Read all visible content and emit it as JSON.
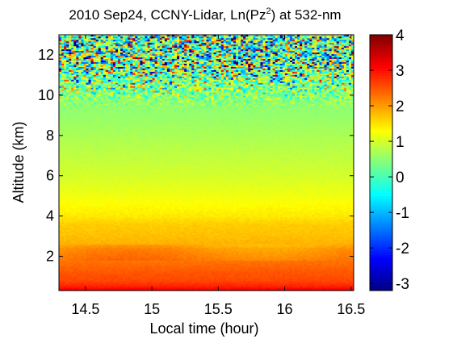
{
  "chart_data": {
    "type": "heatmap",
    "title_parts": {
      "main": "2010 Sep24, CCNY-Lidar, Ln(Pz",
      "sup": "2",
      "tail": ") at 532-nm"
    },
    "xlabel": "Local time (hour)",
    "ylabel": "Altitude (km)",
    "xlim": [
      14.3,
      16.52
    ],
    "ylim": [
      0.3,
      13.0
    ],
    "xticks": [
      "14.5",
      "15",
      "15.5",
      "16",
      "16.5"
    ],
    "xtick_values": [
      14.5,
      15,
      15.5,
      16,
      16.5
    ],
    "yticks": [
      "2",
      "4",
      "6",
      "8",
      "10",
      "12"
    ],
    "ytick_values": [
      2,
      4,
      6,
      8,
      10,
      12
    ],
    "colorbar": {
      "range": [
        -3.2,
        4
      ],
      "ticks": [
        "4",
        "3",
        "2",
        "1",
        "0",
        "-1",
        "-2",
        "-3"
      ],
      "tick_values": [
        4,
        3,
        2,
        1,
        0,
        -1,
        -2,
        -3
      ]
    },
    "profile": {
      "altitude_km": [
        0.3,
        0.5,
        0.8,
        1.2,
        1.6,
        2.0,
        2.4,
        2.6,
        3.0,
        3.6,
        4.0,
        5.0,
        6.0,
        7.0,
        8.0,
        9.0,
        10.0,
        10.5,
        11.0,
        12.0,
        13.0
      ],
      "value": [
        3.3,
        2.9,
        2.6,
        2.5,
        2.35,
        2.2,
        2.05,
        1.85,
        1.75,
        1.65,
        1.45,
        1.2,
        1.0,
        0.85,
        0.7,
        0.55,
        0.45,
        0.4,
        0.3,
        0.2,
        0.1
      ]
    },
    "noise": {
      "onset_altitude_km": 9.3,
      "full_altitude_km": 11.5,
      "amplitude_top": 2.6
    },
    "colormap": "jet",
    "grid": false
  }
}
